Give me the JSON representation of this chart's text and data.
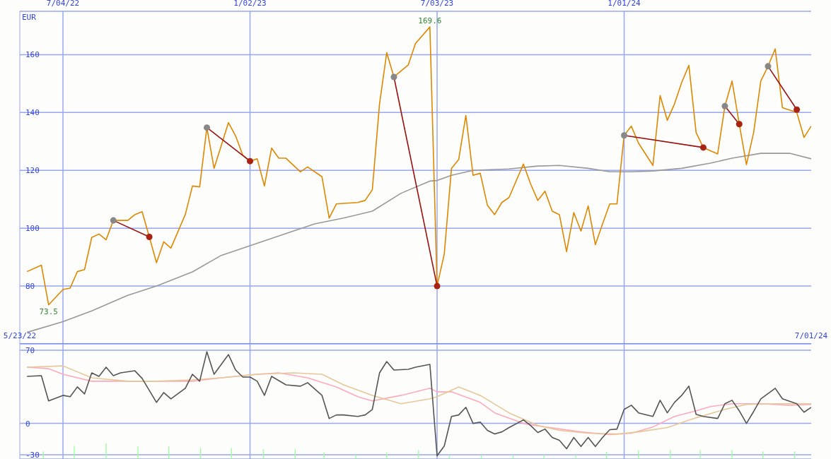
{
  "chart_data": [
    {
      "type": "line",
      "ylabel": "EUR",
      "xlim": [
        "2022-05-23",
        "2024-07-01"
      ],
      "xticks": [
        {
          "value": "2022-05-23",
          "label": "5/23/22"
        },
        {
          "value": "2024-07-01",
          "label": "7/01/24"
        }
      ],
      "x2lim": [
        "2022-05-23",
        "2024-07-01"
      ],
      "x2ticks": [
        {
          "value": "2022-07-04",
          "label": "7/04/22"
        },
        {
          "value": "2023-01-02",
          "label": "1/02/23"
        },
        {
          "value": "2023-07-03",
          "label": "7/03/23"
        },
        {
          "value": "2024-01-01",
          "label": "1/01/24"
        }
      ],
      "ylim": [
        60,
        175
      ],
      "yticks": [
        80,
        100,
        120,
        140,
        160
      ],
      "grid": true,
      "marker": "none",
      "annotations": [
        {
          "text": "169.6",
          "x": "2023-06-26",
          "y": 169.6
        },
        {
          "text": "73.5",
          "x": "2022-06-20",
          "y": 73.5
        }
      ],
      "series": [
        {
          "color": "#999999",
          "x": [
            "2022-05-30",
            "2022-07-04",
            "2022-08-01",
            "2022-09-05",
            "2022-10-03",
            "2022-11-07",
            "2022-12-05",
            "2023-01-09",
            "2023-02-13",
            "2023-03-06",
            "2023-04-03",
            "2023-05-01",
            "2023-05-29",
            "2023-06-26",
            "2023-07-03",
            "2023-07-17",
            "2023-08-07",
            "2023-09-11",
            "2023-10-09",
            "2023-10-30",
            "2023-11-27",
            "2023-12-18",
            "2024-01-08",
            "2024-01-29",
            "2024-02-26",
            "2024-03-25",
            "2024-04-15",
            "2024-05-13",
            "2024-06-10",
            "2024-07-01"
          ],
          "values": [
            64,
            67.7,
            71.4,
            76.8,
            80,
            84.9,
            90.6,
            94.8,
            99,
            101.5,
            103.5,
            105.9,
            112.1,
            116.3,
            116.5,
            118.3,
            120,
            120.5,
            121.5,
            121.7,
            120.7,
            119.5,
            119.5,
            119.8,
            120.7,
            122.5,
            124.2,
            125.9,
            125.9,
            124
          ]
        },
        {
          "color": "#dd8800",
          "x": [
            "2022-05-30",
            "2022-06-13",
            "2022-06-20",
            "2022-07-04",
            "2022-07-11",
            "2022-07-18",
            "2022-07-25",
            "2022-08-01",
            "2022-08-08",
            "2022-08-15",
            "2022-08-22",
            "2022-09-05",
            "2022-09-12",
            "2022-09-19",
            "2022-09-26",
            "2022-10-03",
            "2022-10-10",
            "2022-10-17",
            "2022-10-31",
            "2022-11-07",
            "2022-11-14",
            "2022-11-21",
            "2022-11-28",
            "2022-12-12",
            "2022-12-19",
            "2022-12-26",
            "2023-01-02",
            "2023-01-09",
            "2023-01-16",
            "2023-01-23",
            "2023-01-30",
            "2023-02-06",
            "2023-02-20",
            "2023-02-27",
            "2023-03-13",
            "2023-03-20",
            "2023-03-27",
            "2023-04-03",
            "2023-04-17",
            "2023-04-24",
            "2023-05-01",
            "2023-05-08",
            "2023-05-15",
            "2023-05-22",
            "2023-06-05",
            "2023-06-12",
            "2023-06-26",
            "2023-07-03",
            "2023-07-10",
            "2023-07-17",
            "2023-07-24",
            "2023-07-31",
            "2023-08-07",
            "2023-08-14",
            "2023-08-21",
            "2023-08-28",
            "2023-09-04",
            "2023-09-11",
            "2023-09-25",
            "2023-10-02",
            "2023-10-09",
            "2023-10-16",
            "2023-10-23",
            "2023-10-30",
            "2023-11-06",
            "2023-11-13",
            "2023-11-20",
            "2023-11-27",
            "2023-12-04",
            "2023-12-11",
            "2023-12-18",
            "2023-12-25",
            "2024-01-01",
            "2024-01-08",
            "2024-01-15",
            "2024-01-29",
            "2024-02-05",
            "2024-02-12",
            "2024-02-19",
            "2024-02-26",
            "2024-03-04",
            "2024-03-11",
            "2024-03-18",
            "2024-04-01",
            "2024-04-08",
            "2024-04-15",
            "2024-04-22",
            "2024-04-29",
            "2024-05-06",
            "2024-05-13",
            "2024-05-20",
            "2024-05-27",
            "2024-06-03",
            "2024-06-17",
            "2024-06-24",
            "2024-07-01"
          ],
          "values": [
            85,
            87.2,
            73.5,
            78.8,
            79.3,
            85,
            85.7,
            96.8,
            98,
            96,
            102.7,
            102.7,
            104.7,
            105.7,
            97,
            88.1,
            95.3,
            93.1,
            104.7,
            114.6,
            114.3,
            134.8,
            120.7,
            136.5,
            131.9,
            125.2,
            123.2,
            124,
            114.6,
            127.7,
            124.2,
            124.2,
            119.5,
            121.2,
            117.8,
            103.5,
            108.4,
            108.6,
            108.9,
            109.6,
            113.3,
            143,
            160.7,
            152.3,
            156.5,
            163.9,
            169.6,
            80,
            91.1,
            120.7,
            123.7,
            139,
            118.3,
            119,
            107.9,
            104.7,
            108.9,
            110.6,
            122.2,
            115.3,
            109.6,
            112.8,
            105.9,
            104.7,
            91.9,
            105.4,
            99,
            107.7,
            94.3,
            101.5,
            108.4,
            108.4,
            132.1,
            135.3,
            129.4,
            121.7,
            145.9,
            137.3,
            143,
            150.4,
            156.3,
            133.1,
            127.9,
            125.7,
            142.2,
            150.9,
            136,
            122,
            133.1,
            150.9,
            156,
            162,
            141.7,
            140,
            131.4,
            135.3
          ]
        },
        {
          "color": "#991111",
          "x": [
            "2022-08-22",
            "2022-09-26"
          ],
          "values": [
            102.7,
            97
          ]
        },
        {
          "color": "#991111",
          "x": [
            "2022-11-21",
            "2023-01-02"
          ],
          "values": [
            134.8,
            123.2
          ]
        },
        {
          "color": "#991111",
          "x": [
            "2023-05-22",
            "2023-07-03"
          ],
          "values": [
            152.3,
            80
          ]
        },
        {
          "color": "#991111",
          "x": [
            "2024-01-01",
            "2024-03-18"
          ],
          "values": [
            132.1,
            127.9
          ]
        },
        {
          "color": "#991111",
          "x": [
            "2024-04-08",
            "2024-04-22"
          ],
          "values": [
            142.2,
            136
          ]
        },
        {
          "color": "#991111",
          "x": [
            "2024-05-20",
            "2024-06-17"
          ],
          "values": [
            156,
            141
          ]
        },
        {
          "type": "scatter",
          "marker": "circle",
          "color": "#888888",
          "x": [
            "2022-08-22",
            "2022-11-21",
            "2023-05-22",
            "2024-01-01",
            "2024-04-08",
            "2024-05-20"
          ],
          "values": [
            102.7,
            134.8,
            152.3,
            132.1,
            142.2,
            156
          ]
        },
        {
          "type": "scatter",
          "marker": "circle",
          "color": "#aa2211",
          "x": [
            "2022-09-26",
            "2023-01-02",
            "2023-07-03",
            "2024-03-18",
            "2024-04-22",
            "2024-06-17"
          ],
          "values": [
            97,
            123.2,
            80,
            127.9,
            136,
            141
          ]
        }
      ]
    },
    {
      "type": "line",
      "xlim": [
        "2022-05-23",
        "2024-07-01"
      ],
      "xticks": [
        "2022-07-04",
        "2023-01-02",
        "2023-07-03",
        "2024-01-01"
      ],
      "ylim": [
        -34,
        76
      ],
      "yticks": [
        70,
        0,
        -30
      ],
      "grid": true,
      "tick_labels": "y",
      "marker": "none",
      "series": [
        {
          "type": "bar",
          "color": "#99ff99",
          "x": [
            "2022-06-15",
            "2022-07-15",
            "2022-08-15",
            "2022-09-15",
            "2022-10-15",
            "2022-11-15",
            "2022-12-15",
            "2023-01-15",
            "2023-02-15",
            "2023-03-15",
            "2023-04-15",
            "2023-05-15",
            "2023-06-15",
            "2023-07-15",
            "2023-08-15",
            "2023-09-15",
            "2023-10-15",
            "2023-11-15",
            "2023-12-15",
            "2024-01-15",
            "2024-02-15",
            "2024-03-15",
            "2024-04-15",
            "2024-05-15",
            "2024-06-15"
          ],
          "base": [
            -34,
            -34,
            -34,
            -34,
            -34,
            -34,
            -34,
            -34,
            -34,
            -34,
            -34,
            -34,
            -34,
            -34,
            -34,
            -34,
            -34,
            -34,
            -34,
            -34,
            -34,
            -34,
            -34,
            -34,
            -34
          ],
          "values": [
            7.2,
            12.5,
            15,
            12,
            12,
            10.5,
            10.5,
            9.2,
            9.2,
            6,
            3.8,
            6,
            8.5,
            3,
            3.8,
            3.8,
            3.8,
            3.8,
            7,
            8.5,
            8.5,
            8.5,
            8.5,
            7.2,
            7.2
          ]
        },
        {
          "color": "#ffaabb",
          "x": [
            "2022-05-30",
            "2022-06-20",
            "2022-07-04",
            "2022-08-01",
            "2022-09-05",
            "2022-10-03",
            "2022-11-07",
            "2022-12-05",
            "2023-01-09",
            "2023-01-30",
            "2023-02-27",
            "2023-03-27",
            "2023-04-17",
            "2023-05-01",
            "2023-05-29",
            "2023-06-26",
            "2023-07-03",
            "2023-07-17",
            "2023-08-14",
            "2023-08-28",
            "2023-09-25",
            "2023-10-16",
            "2023-11-20",
            "2023-12-18",
            "2024-01-08",
            "2024-01-29",
            "2024-02-19",
            "2024-03-11",
            "2024-03-25",
            "2024-04-15",
            "2024-05-13",
            "2024-06-10",
            "2024-07-01"
          ],
          "values": [
            53.7,
            52.3,
            47,
            40.3,
            40.3,
            40.3,
            40.3,
            43.6,
            47,
            48.3,
            43.6,
            34.9,
            25.5,
            21.5,
            26.8,
            33.6,
            30.2,
            30.2,
            20.1,
            10.1,
            0,
            -3.4,
            -8.1,
            -10.7,
            -9.4,
            -3.4,
            6.7,
            12.1,
            16.1,
            18.8,
            18.8,
            17.4,
            18.1
          ]
        },
        {
          "color": "#e6c898",
          "x": [
            "2022-05-30",
            "2022-07-04",
            "2022-08-01",
            "2022-09-05",
            "2022-10-03",
            "2022-11-07",
            "2022-12-05",
            "2023-01-09",
            "2023-02-13",
            "2023-03-13",
            "2023-04-03",
            "2023-05-01",
            "2023-05-29",
            "2023-06-26",
            "2023-07-03",
            "2023-07-24",
            "2023-08-14",
            "2023-09-11",
            "2023-10-09",
            "2023-10-30",
            "2023-11-27",
            "2023-12-25",
            "2024-01-15",
            "2024-02-12",
            "2024-03-11",
            "2024-04-08",
            "2024-04-29",
            "2024-05-27",
            "2024-07-01"
          ],
          "values": [
            53.7,
            55,
            43.6,
            40.3,
            40.3,
            41.6,
            43.6,
            47,
            48.3,
            47,
            36.9,
            26.8,
            18.8,
            23.5,
            25.5,
            34.9,
            26.8,
            10.1,
            -2,
            -6.7,
            -9.4,
            -10.1,
            -8.1,
            -4,
            5.4,
            13.4,
            18.1,
            18.8,
            18.8
          ]
        },
        {
          "color": "#555555",
          "x": [
            "2022-05-30",
            "2022-06-13",
            "2022-06-20",
            "2022-07-04",
            "2022-07-11",
            "2022-07-18",
            "2022-07-25",
            "2022-08-01",
            "2022-08-08",
            "2022-08-15",
            "2022-08-22",
            "2022-08-29",
            "2022-09-12",
            "2022-09-19",
            "2022-10-03",
            "2022-10-10",
            "2022-10-17",
            "2022-10-31",
            "2022-11-07",
            "2022-11-14",
            "2022-11-21",
            "2022-11-28",
            "2022-12-12",
            "2022-12-19",
            "2022-12-26",
            "2023-01-02",
            "2023-01-09",
            "2023-01-16",
            "2023-01-23",
            "2023-02-06",
            "2023-02-20",
            "2023-02-27",
            "2023-03-13",
            "2023-03-20",
            "2023-03-27",
            "2023-04-03",
            "2023-04-17",
            "2023-04-24",
            "2023-05-01",
            "2023-05-08",
            "2023-05-15",
            "2023-05-22",
            "2023-06-05",
            "2023-06-12",
            "2023-06-26",
            "2023-07-03",
            "2023-07-10",
            "2023-07-17",
            "2023-07-24",
            "2023-07-31",
            "2023-08-07",
            "2023-08-14",
            "2023-08-21",
            "2023-08-28",
            "2023-09-04",
            "2023-09-11",
            "2023-09-25",
            "2023-10-02",
            "2023-10-09",
            "2023-10-16",
            "2023-10-23",
            "2023-10-30",
            "2023-11-06",
            "2023-11-13",
            "2023-11-20",
            "2023-11-27",
            "2023-12-04",
            "2023-12-11",
            "2023-12-18",
            "2023-12-25",
            "2024-01-01",
            "2024-01-08",
            "2024-01-15",
            "2024-01-29",
            "2024-02-05",
            "2024-02-12",
            "2024-02-19",
            "2024-02-26",
            "2024-03-04",
            "2024-03-11",
            "2024-03-18",
            "2024-04-01",
            "2024-04-08",
            "2024-04-15",
            "2024-04-22",
            "2024-04-29",
            "2024-05-06",
            "2024-05-13",
            "2024-05-27",
            "2024-06-03",
            "2024-06-17",
            "2024-06-24",
            "2024-07-01"
          ],
          "values": [
            45,
            45.6,
            21.5,
            26.8,
            25.5,
            34.9,
            28.2,
            48.3,
            45,
            53.7,
            45.6,
            48.3,
            50.3,
            43,
            20.1,
            29.5,
            23.5,
            33.6,
            47,
            40.3,
            68.5,
            47,
            65.8,
            51,
            44.3,
            44.3,
            40.3,
            26.8,
            45,
            36.9,
            35.6,
            38.9,
            26.8,
            4.7,
            8.1,
            8.1,
            6.7,
            8.1,
            13.4,
            48.3,
            59.1,
            51,
            51.7,
            53.7,
            56.4,
            -30.9,
            -21.5,
            6.7,
            8.1,
            15.4,
            0,
            1.3,
            -6.7,
            -10.1,
            -8.1,
            -4,
            3.4,
            -2,
            -8.7,
            -5.4,
            -13.4,
            -16.1,
            -24.2,
            -13.4,
            -22.1,
            -13.4,
            -22.1,
            -13.4,
            -6,
            -5.4,
            13.4,
            17.4,
            10.1,
            6.7,
            22.1,
            10.1,
            20.1,
            26.8,
            35.6,
            8.7,
            6.7,
            4.7,
            18.8,
            22.1,
            12.1,
            0,
            11.4,
            23.5,
            33.6,
            23.5,
            18.8,
            10.7,
            15.4
          ]
        }
      ]
    }
  ]
}
